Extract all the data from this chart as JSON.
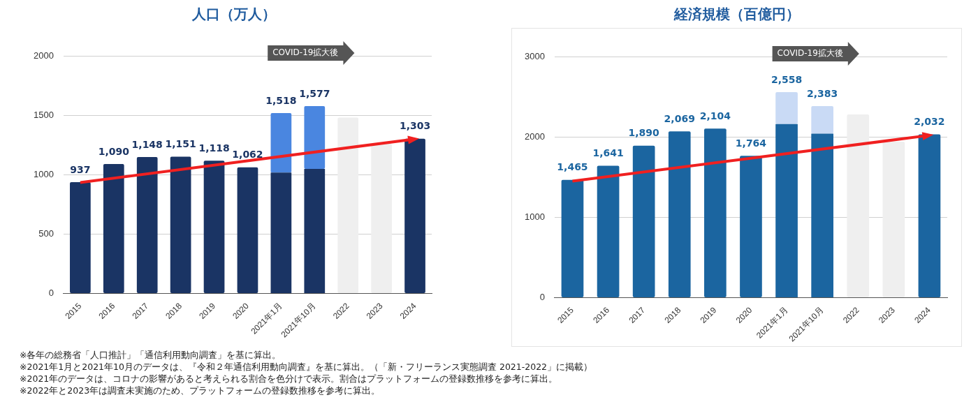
{
  "chart_data": [
    {
      "type": "bar",
      "title": "人口（万人）",
      "categories": [
        "2015",
        "2016",
        "2017",
        "2018",
        "2019",
        "2020",
        "2021年1月",
        "2021年10月",
        "2022",
        "2023",
        "2024"
      ],
      "stacked": true,
      "series": [
        {
          "color": "#1a3464",
          "values": [
            937,
            1090,
            1148,
            1151,
            1118,
            1062,
            1018,
            1048,
            null,
            null,
            1303
          ]
        },
        {
          "color": "#4a86e0",
          "values": [
            null,
            null,
            null,
            null,
            null,
            null,
            500,
            529,
            null,
            null,
            null
          ]
        },
        {
          "color": "#efefef",
          "values": [
            null,
            null,
            null,
            null,
            null,
            null,
            null,
            null,
            1480,
            1260,
            null
          ]
        },
        {
          "type": "line",
          "color": "#f02020",
          "values": [
            934,
            null,
            null,
            null,
            null,
            null,
            null,
            null,
            null,
            null,
            1300
          ]
        }
      ],
      "totals": [
        "937",
        "1,090",
        "1,148",
        "1,151",
        "1,118",
        "1,062",
        "1,518",
        "1,577",
        null,
        null,
        "1,303"
      ],
      "ylim": [
        0,
        2000
      ],
      "yticks": [
        0,
        500,
        1000,
        1500,
        2000
      ],
      "grid": "y",
      "annotations": [
        "COVID-19拡大後",
        "※各年の総務省「人口推計」「通信利用動向調査」を基に算出。",
        "※2021年1月と2021年10月のデータは、『令和２年通信利用動向調査』を基に算出。（「新・フリーランス実態調査 2021-2022」に掲載）",
        "※2021年のデータは、コロナの影響があると考えられる割合を色分けで表示。割合はプラットフォームの登録数推移を参考に算出。",
        "※2022年と2023年は調査未実施のため、プラットフォームの登録数推移を参考に算出。"
      ]
    },
    {
      "type": "bar",
      "title": "経済規模（百億円）",
      "categories": [
        "2015",
        "2016",
        "2017",
        "2018",
        "2019",
        "2020",
        "2021年1月",
        "2021年10月",
        "2022",
        "2023",
        "2024"
      ],
      "stacked": true,
      "series": [
        {
          "color": "#1b65a0",
          "values": [
            1465,
            1641,
            1890,
            2069,
            2104,
            1764,
            2160,
            2040,
            null,
            null,
            2032
          ]
        },
        {
          "color": "#c9daf5",
          "values": [
            null,
            null,
            null,
            null,
            null,
            null,
            398,
            343,
            null,
            null,
            null
          ]
        },
        {
          "color": "#efefef",
          "values": [
            null,
            null,
            null,
            null,
            null,
            null,
            null,
            null,
            2280,
            1940,
            null
          ]
        },
        {
          "type": "line",
          "color": "#f02020",
          "values": [
            1450,
            null,
            null,
            null,
            null,
            null,
            null,
            null,
            null,
            null,
            2020
          ]
        }
      ],
      "totals": [
        "1,465",
        "1,641",
        "1,890",
        "2,069",
        "2,104",
        "1,764",
        "2,558",
        "2,383",
        null,
        null,
        "2,032"
      ],
      "ylim": [
        0,
        3000
      ],
      "yticks": [
        0,
        1000,
        2000,
        3000
      ],
      "grid": "y",
      "annotations": [
        "COVID-19拡大後"
      ]
    }
  ]
}
